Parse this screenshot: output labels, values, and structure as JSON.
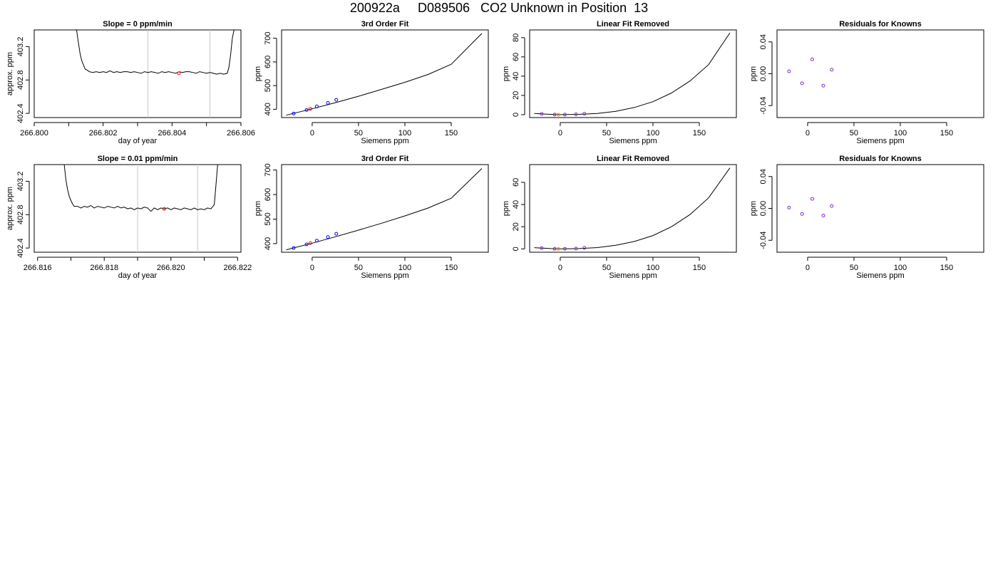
{
  "page_title": "200922a     D089506   CO2 Unknown in Position  13",
  "chart_data": [
    {
      "type": "line",
      "panel": "row1-timeseries",
      "title": "Slope =  0  ppm/min",
      "xlabel": "day of year",
      "ylabel": "approx. ppm",
      "xlim": [
        266.8,
        266.806
      ],
      "ylim": [
        402.35,
        403.4
      ],
      "xticks": [
        "266.800",
        "266.802",
        "266.804",
        "266.806"
      ],
      "yticks": [
        "402.4",
        "402.8",
        "403.2"
      ],
      "vlines": [
        266.8033,
        266.8051
      ],
      "series": [
        {
          "x": [
            266.80123,
            266.80128,
            266.80133,
            266.80138,
            266.80143,
            266.80148,
            266.80153,
            266.8016,
            266.8017,
            266.8018,
            266.8019,
            266.802,
            266.8021,
            266.8022,
            266.8023,
            266.8024,
            266.8025,
            266.8026,
            266.8027,
            266.8028,
            266.8029,
            266.803,
            266.8031,
            266.8032,
            266.8033,
            266.8034,
            266.8035,
            266.8036,
            266.8037,
            266.8038,
            266.8039,
            266.804,
            266.8041,
            266.8042,
            266.8043,
            266.8044,
            266.8045,
            266.8046,
            266.8047,
            266.8048,
            266.8049,
            266.805,
            266.8051,
            266.8052,
            266.8053,
            266.8054,
            266.8055,
            266.8056,
            266.80565,
            266.8057,
            266.80575,
            266.8058
          ],
          "values": [
            403.4,
            403.25,
            403.12,
            403.03,
            402.98,
            402.93,
            402.92,
            402.9,
            402.89,
            402.9,
            402.89,
            402.9,
            402.89,
            402.91,
            402.89,
            402.9,
            402.89,
            402.9,
            402.9,
            402.89,
            402.9,
            402.89,
            402.88,
            402.9,
            402.89,
            402.9,
            402.89,
            402.88,
            402.9,
            402.89,
            402.9,
            402.89,
            402.88,
            402.9,
            402.89,
            402.9,
            402.9,
            402.89,
            402.88,
            402.9,
            402.89,
            402.88,
            402.89,
            402.88,
            402.87,
            402.88,
            402.87,
            402.88,
            402.95,
            403.1,
            403.3,
            403.4
          ]
        }
      ],
      "marker": {
        "x": 266.8042,
        "y": 402.88,
        "color": "#ff0000"
      }
    },
    {
      "type": "scatter",
      "panel": "row1-fit",
      "title": "3rd Order Fit",
      "xlabel": "Siemens ppm",
      "ylabel": "ppm",
      "xlim": [
        -33,
        190
      ],
      "ylim": [
        365,
        735
      ],
      "xticks": [
        0,
        50,
        100,
        150
      ],
      "yticks": [
        400,
        500,
        600,
        700
      ],
      "curve": {
        "x": [
          -28,
          0,
          25,
          50,
          75,
          100,
          125,
          150,
          183
        ],
        "values": [
          375,
          402,
          428,
          455,
          484,
          514,
          547,
          590,
          720
        ]
      },
      "knowns": {
        "x": [
          -20,
          -6,
          5,
          17,
          26
        ],
        "values": [
          382,
          397,
          412,
          427,
          440
        ],
        "color": "#0000ff"
      },
      "unknown": {
        "x": [
          -2
        ],
        "values": [
          402
        ],
        "color": "#ff0000"
      }
    },
    {
      "type": "scatter",
      "panel": "row1-linear-removed",
      "title": "Linear Fit Removed",
      "xlabel": "Siemens ppm",
      "ylabel": "ppm",
      "xlim": [
        -33,
        190
      ],
      "ylim": [
        -3,
        88
      ],
      "xticks": [
        0,
        50,
        100,
        150
      ],
      "yticks": [
        0,
        20,
        40,
        60,
        80
      ],
      "curve": {
        "x": [
          -28,
          -10,
          0,
          20,
          40,
          60,
          80,
          100,
          120,
          140,
          160,
          183
        ],
        "values": [
          1.2,
          0.3,
          0,
          0.3,
          1.3,
          3.5,
          7.5,
          13.5,
          22.5,
          35,
          52,
          85
        ]
      },
      "knowns": {
        "x": [
          -20,
          -6,
          5,
          17,
          26
        ],
        "values": [
          0.8,
          0.1,
          0.1,
          0.3,
          1.0
        ],
        "color": "#7b2fbe"
      },
      "unknown": {
        "x": [
          -2
        ],
        "values": [
          0
        ],
        "color": "#ff8c00"
      }
    },
    {
      "type": "scatter",
      "panel": "row1-residuals",
      "title": "Residuals for Knowns",
      "xlabel": "Siemens ppm",
      "ylabel": "ppm",
      "xlim": [
        -33,
        190
      ],
      "ylim": [
        -0.055,
        0.055
      ],
      "xticks": [
        0,
        50,
        100,
        150
      ],
      "yticks": [
        "-0.04",
        "0.00",
        "0.04"
      ],
      "knowns": {
        "x": [
          -20,
          -6,
          5,
          17,
          26
        ],
        "values": [
          0.003,
          -0.012,
          0.018,
          -0.015,
          0.005
        ],
        "color": "#7b2fbe"
      }
    },
    {
      "type": "line",
      "panel": "row2-timeseries",
      "title": "Slope =  0.01  ppm/min",
      "xlabel": "day of year",
      "ylabel": "approx. ppm",
      "xlim": [
        266.8159,
        266.8221
      ],
      "ylim": [
        402.35,
        403.4
      ],
      "xticks": [
        "266.816",
        "266.818",
        "266.820",
        "266.822"
      ],
      "yticks": [
        "402.4",
        "402.8",
        "403.2"
      ],
      "vlines": [
        266.819,
        266.8208
      ],
      "series": [
        {
          "x": [
            266.8168,
            266.81685,
            266.8169,
            266.81695,
            266.817,
            266.81705,
            266.8171,
            266.8172,
            266.8173,
            266.8174,
            266.8175,
            266.8176,
            266.8177,
            266.8178,
            266.8179,
            266.818,
            266.8181,
            266.8182,
            266.8183,
            266.8184,
            266.8185,
            266.8186,
            266.8187,
            266.8188,
            266.8189,
            266.819,
            266.8191,
            266.8192,
            266.8193,
            266.8194,
            266.8195,
            266.8196,
            266.8197,
            266.8198,
            266.8199,
            266.82,
            266.8201,
            266.8202,
            266.8203,
            266.8204,
            266.8205,
            266.8206,
            266.8207,
            266.8208,
            266.8209,
            266.821,
            266.8211,
            266.8212,
            266.8213,
            266.82135,
            266.8214
          ],
          "values": [
            403.4,
            403.22,
            403.1,
            403.02,
            402.97,
            402.93,
            402.9,
            402.9,
            402.88,
            402.9,
            402.89,
            402.91,
            402.88,
            402.9,
            402.89,
            402.88,
            402.9,
            402.89,
            402.88,
            402.9,
            402.88,
            402.89,
            402.87,
            402.88,
            402.86,
            402.88,
            402.87,
            402.89,
            402.88,
            402.84,
            402.88,
            402.86,
            402.88,
            402.87,
            402.88,
            402.86,
            402.88,
            402.87,
            402.86,
            402.88,
            402.87,
            402.86,
            402.88,
            402.86,
            402.87,
            402.86,
            402.88,
            402.87,
            402.92,
            403.15,
            403.4
          ]
        }
      ],
      "marker": {
        "x": 266.8198,
        "y": 402.87,
        "color": "#ff0000"
      }
    },
    {
      "type": "scatter",
      "panel": "row2-fit",
      "title": "3rd Order Fit",
      "xlabel": "Siemens ppm",
      "ylabel": "ppm",
      "xlim": [
        -33,
        190
      ],
      "ylim": [
        365,
        722
      ],
      "xticks": [
        0,
        50,
        100,
        150
      ],
      "yticks": [
        400,
        500,
        600,
        700
      ],
      "curve": {
        "x": [
          -28,
          0,
          25,
          50,
          75,
          100,
          125,
          150,
          183
        ],
        "values": [
          375,
          402,
          428,
          455,
          483,
          513,
          545,
          585,
          706
        ]
      },
      "knowns": {
        "x": [
          -20,
          -6,
          5,
          17,
          26
        ],
        "values": [
          382,
          397,
          412,
          427,
          440
        ],
        "color": "#0000ff"
      },
      "unknown": {
        "x": [
          -2
        ],
        "values": [
          402
        ],
        "color": "#ff0000"
      }
    },
    {
      "type": "scatter",
      "panel": "row2-linear-removed",
      "title": "Linear Fit Removed",
      "xlabel": "Siemens ppm",
      "ylabel": "ppm",
      "xlim": [
        -33,
        190
      ],
      "ylim": [
        -3,
        76
      ],
      "xticks": [
        0,
        50,
        100,
        150
      ],
      "yticks": [
        0,
        20,
        40,
        60
      ],
      "curve": {
        "x": [
          -28,
          -10,
          0,
          20,
          40,
          60,
          80,
          100,
          120,
          140,
          160,
          183
        ],
        "values": [
          1.1,
          0.3,
          0,
          0.3,
          1.2,
          3.2,
          6.7,
          12,
          20,
          31,
          46,
          73
        ]
      },
      "knowns": {
        "x": [
          -20,
          -6,
          5,
          17,
          26
        ],
        "values": [
          0.7,
          0.1,
          0.1,
          0.3,
          0.9
        ],
        "color": "#7b2fbe"
      },
      "unknown": {
        "x": [
          -2
        ],
        "values": [
          0
        ],
        "color": "#ff8c00"
      }
    },
    {
      "type": "scatter",
      "panel": "row2-residuals",
      "title": "Residuals for Knowns",
      "xlabel": "Siemens ppm",
      "ylabel": "ppm",
      "xlim": [
        -33,
        190
      ],
      "ylim": [
        -0.055,
        0.055
      ],
      "xticks": [
        0,
        50,
        100,
        150
      ],
      "yticks": [
        "-0.04",
        "0.00",
        "0.04"
      ],
      "knowns": {
        "x": [
          -20,
          -6,
          5,
          17,
          26
        ],
        "values": [
          0.001,
          -0.007,
          0.012,
          -0.009,
          0.003
        ],
        "color": "#7b2fbe"
      }
    }
  ]
}
